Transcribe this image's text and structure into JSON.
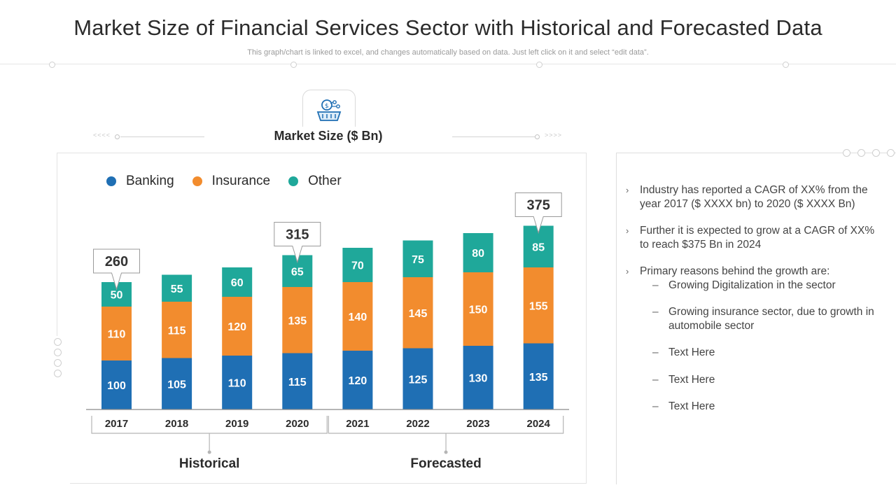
{
  "header": {
    "title": "Market Size of Financial Services Sector with Historical and Forecasted Data",
    "subtitle": "This graph/chart is linked to excel, and changes automatically based on data. Just left click on it and select “edit data”."
  },
  "icon": {
    "name": "money-basket-icon"
  },
  "chart_data": {
    "type": "bar",
    "stacked": true,
    "title": "Market Size ($ Bn)",
    "categories": [
      "2017",
      "2018",
      "2019",
      "2020",
      "2021",
      "2022",
      "2023",
      "2024"
    ],
    "series": [
      {
        "name": "Banking",
        "color": "#1f6fb4",
        "values": [
          100,
          105,
          110,
          115,
          120,
          125,
          130,
          135
        ]
      },
      {
        "name": "Insurance",
        "color": "#f28c2e",
        "values": [
          110,
          115,
          120,
          135,
          140,
          145,
          150,
          155
        ]
      },
      {
        "name": "Other",
        "color": "#1fa89a",
        "values": [
          50,
          55,
          60,
          65,
          70,
          75,
          80,
          85
        ]
      }
    ],
    "callouts": [
      {
        "category": "2017",
        "label": "260"
      },
      {
        "category": "2020",
        "label": "315"
      },
      {
        "category": "2024",
        "label": "375"
      }
    ],
    "groups": [
      {
        "label": "Historical",
        "categories": [
          "2017",
          "2018",
          "2019",
          "2020"
        ]
      },
      {
        "label": "Forecasted",
        "categories": [
          "2021",
          "2022",
          "2023",
          "2024"
        ]
      }
    ],
    "ylim": [
      0,
      400
    ],
    "legend": "top-left"
  },
  "panel": {
    "bullets": [
      "Industry  has reported a CAGR of XX% from the year 2017 ($ XXXX bn) to 2020 ($ XXXX Bn)",
      "Further  it is expected to grow at a CAGR of XX% to reach $375 Bn in 2024",
      "Primary reasons behind the growth are:"
    ],
    "sub_bullets": [
      "Growing Digitalization in the sector",
      "Growing insurance sector, due to growth in automobile sector",
      "Text  Here",
      "Text  Here",
      "Text  Here"
    ],
    "bullet_marker": "›",
    "sub_marker": "–"
  }
}
